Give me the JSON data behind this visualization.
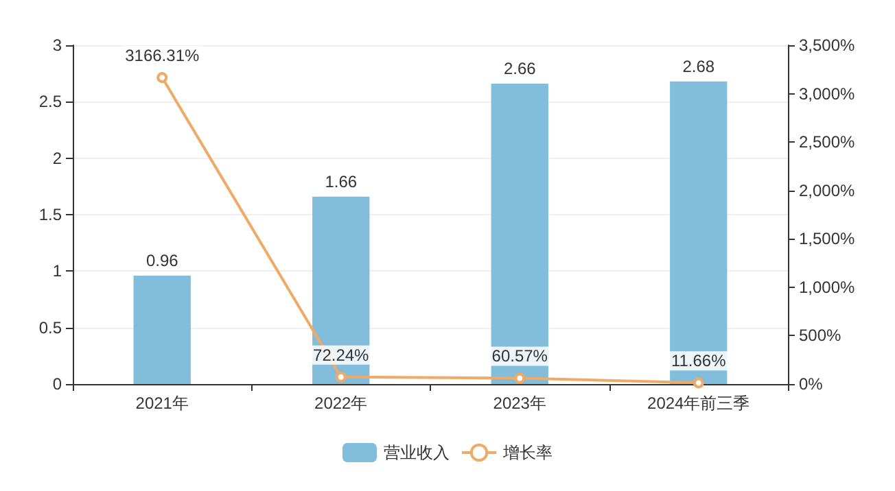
{
  "chart_data": {
    "type": "bar",
    "categories": [
      "2021年",
      "2022年",
      "2023年",
      "2024年前三季"
    ],
    "series": [
      {
        "name": "营业收入",
        "color": "#82bedc",
        "values": [
          0.96,
          1.66,
          2.66,
          2.68
        ],
        "value_labels": [
          "0.96",
          "1.66",
          "2.66",
          "2.68"
        ]
      },
      {
        "name": "增长率",
        "type": "line",
        "axis": "y2",
        "color": "#eeaa66",
        "values": [
          3166.31,
          72.24,
          60.57,
          11.66
        ],
        "value_labels": [
          "3166.31%",
          "72.24%",
          "60.57%",
          "11.66%"
        ]
      }
    ],
    "ylim": [
      0,
      3
    ],
    "yticks": [
      0,
      0.5,
      1,
      1.5,
      2,
      2.5,
      3
    ],
    "y2lim": [
      0,
      3500
    ],
    "y2ticks": [
      {
        "value": 0,
        "label": "0%"
      },
      {
        "value": 500,
        "label": "500%"
      },
      {
        "value": 1000,
        "label": "1,000%"
      },
      {
        "value": 1500,
        "label": "1,500%"
      },
      {
        "value": 2000,
        "label": "2,000%"
      },
      {
        "value": 2500,
        "label": "2,500%"
      },
      {
        "value": 3000,
        "label": "3,000%"
      },
      {
        "value": 3500,
        "label": "3,500%"
      }
    ],
    "grid": "y",
    "legend": "bottom",
    "marker": "circle",
    "line_style": "solid"
  }
}
